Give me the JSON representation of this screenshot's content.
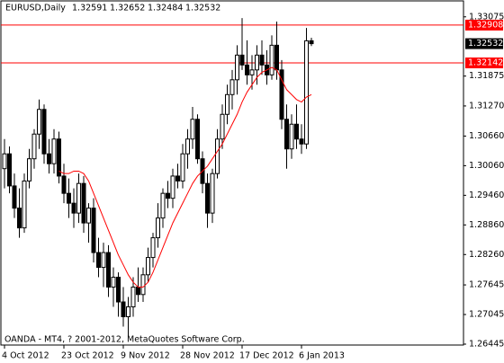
{
  "chart_data": {
    "type": "candlestick",
    "title": "EURUSD,Daily",
    "note": "OANDA - MT4, ? 2001-2012, MetaQuotes Software Corp.",
    "categories": [
      "4 Oct 2012",
      null,
      null,
      null,
      null,
      null,
      null,
      null,
      null,
      null,
      null,
      null,
      "23 Oct 2012",
      null,
      null,
      null,
      null,
      null,
      null,
      null,
      null,
      null,
      null,
      null,
      "9 Nov 2012",
      null,
      null,
      null,
      null,
      null,
      null,
      null,
      null,
      null,
      null,
      null,
      "28 Nov 2012",
      null,
      null,
      null,
      null,
      null,
      null,
      null,
      null,
      null,
      null,
      null,
      "17 Dec 2012",
      null,
      null,
      null,
      null,
      null,
      null,
      null,
      null,
      null,
      null,
      null,
      "6 Jan 2013",
      null,
      null
    ],
    "open": [
      1.3,
      1.303,
      1.2965,
      1.292,
      1.288,
      1.2975,
      1.302,
      1.307,
      1.312,
      1.303,
      1.301,
      1.306,
      1.2985,
      1.295,
      1.293,
      1.291,
      1.297,
      1.289,
      1.292,
      1.283,
      1.28,
      1.283,
      1.276,
      1.278,
      1.273,
      1.27,
      1.272,
      1.276,
      1.2745,
      1.2785,
      1.282,
      1.286,
      1.29,
      1.295,
      1.294,
      1.2985,
      1.2975,
      1.303,
      1.306,
      1.31,
      1.302,
      1.297,
      1.291,
      1.299,
      1.306,
      1.311,
      1.315,
      1.318,
      1.323,
      1.321,
      1.319,
      1.32,
      1.323,
      1.321,
      1.319,
      1.325,
      1.32,
      1.31,
      1.304,
      1.309,
      1.306,
      1.305,
      1.32591
    ],
    "high": [
      1.306,
      1.3045,
      1.299,
      1.296,
      1.299,
      1.304,
      1.308,
      1.314,
      1.313,
      1.306,
      1.308,
      1.3075,
      1.301,
      1.298,
      1.296,
      1.299,
      1.2985,
      1.293,
      1.294,
      1.286,
      1.285,
      1.2845,
      1.28,
      1.279,
      1.276,
      1.274,
      1.278,
      1.28,
      1.28,
      1.284,
      1.287,
      1.293,
      1.296,
      1.2975,
      1.3,
      1.301,
      1.305,
      1.308,
      1.3125,
      1.311,
      1.3035,
      1.299,
      1.3,
      1.308,
      1.313,
      1.317,
      1.32,
      1.325,
      1.3305,
      1.326,
      1.323,
      1.325,
      1.326,
      1.324,
      1.327,
      1.3298,
      1.322,
      1.313,
      1.311,
      1.313,
      1.309,
      1.3285,
      1.32652
    ],
    "low": [
      1.296,
      1.295,
      1.29,
      1.286,
      1.287,
      1.296,
      1.3,
      1.304,
      1.301,
      1.299,
      1.299,
      1.297,
      1.293,
      1.29,
      1.288,
      1.289,
      1.287,
      1.285,
      1.281,
      1.278,
      1.276,
      1.274,
      1.272,
      1.27,
      1.268,
      1.266,
      1.27,
      1.273,
      1.273,
      1.277,
      1.28,
      1.284,
      1.288,
      1.292,
      1.292,
      1.296,
      1.296,
      1.3,
      1.304,
      1.301,
      1.295,
      1.288,
      1.289,
      1.298,
      1.304,
      1.309,
      1.312,
      1.315,
      1.32,
      1.317,
      1.316,
      1.317,
      1.319,
      1.317,
      1.318,
      1.318,
      1.308,
      1.3,
      1.302,
      1.304,
      1.303,
      1.304,
      1.32484
    ],
    "close": [
      1.303,
      1.2965,
      1.292,
      1.288,
      1.2975,
      1.302,
      1.307,
      1.312,
      1.303,
      1.301,
      1.306,
      1.2985,
      1.295,
      1.293,
      1.291,
      1.297,
      1.289,
      1.292,
      1.283,
      1.28,
      1.283,
      1.276,
      1.278,
      1.273,
      1.27,
      1.272,
      1.276,
      1.2745,
      1.2785,
      1.282,
      1.286,
      1.29,
      1.295,
      1.294,
      1.2985,
      1.2975,
      1.303,
      1.306,
      1.31,
      1.302,
      1.297,
      1.291,
      1.299,
      1.306,
      1.311,
      1.315,
      1.318,
      1.323,
      1.321,
      1.319,
      1.32,
      1.323,
      1.321,
      1.319,
      1.325,
      1.32,
      1.31,
      1.304,
      1.309,
      1.306,
      1.305,
      1.3259,
      1.32532
    ],
    "ma": {
      "color": "#ff0000",
      "values": [
        null,
        null,
        null,
        null,
        null,
        null,
        null,
        null,
        null,
        null,
        null,
        1.2995,
        1.299,
        1.299,
        1.2995,
        1.2995,
        1.299,
        1.2975,
        1.295,
        1.2925,
        1.29,
        1.2875,
        1.285,
        1.2825,
        1.2805,
        1.2785,
        1.277,
        1.276,
        1.276,
        1.277,
        1.279,
        1.2815,
        1.284,
        1.2865,
        1.289,
        1.291,
        1.293,
        1.295,
        1.297,
        1.2985,
        1.2995,
        1.3005,
        1.302,
        1.3035,
        1.305,
        1.307,
        1.309,
        1.311,
        1.3135,
        1.3155,
        1.317,
        1.3185,
        1.3195,
        1.32,
        1.3205,
        1.32,
        1.318,
        1.316,
        1.315,
        1.314,
        1.3135,
        1.3145,
        1.315
      ]
    },
    "levels": [
      1.32908,
      1.32142
    ],
    "level_color": "#ff0000",
    "ylim": [
      1.26445,
      1.3338
    ],
    "yticks": [
      1.33075,
      1.31875,
      {
        "value": 1.3127,
        "label": "1.31270"
      },
      {
        "value": 1.3066,
        "label": "1.30660"
      },
      {
        "value": 1.3006,
        "label": "1.30060"
      },
      {
        "value": 1.2946,
        "label": "1.29460"
      },
      {
        "value": 1.2886,
        "label": "1.28860"
      },
      {
        "value": 1.2826,
        "label": "1.28260"
      },
      1.27645,
      1.27045,
      1.26445
    ]
  }
}
